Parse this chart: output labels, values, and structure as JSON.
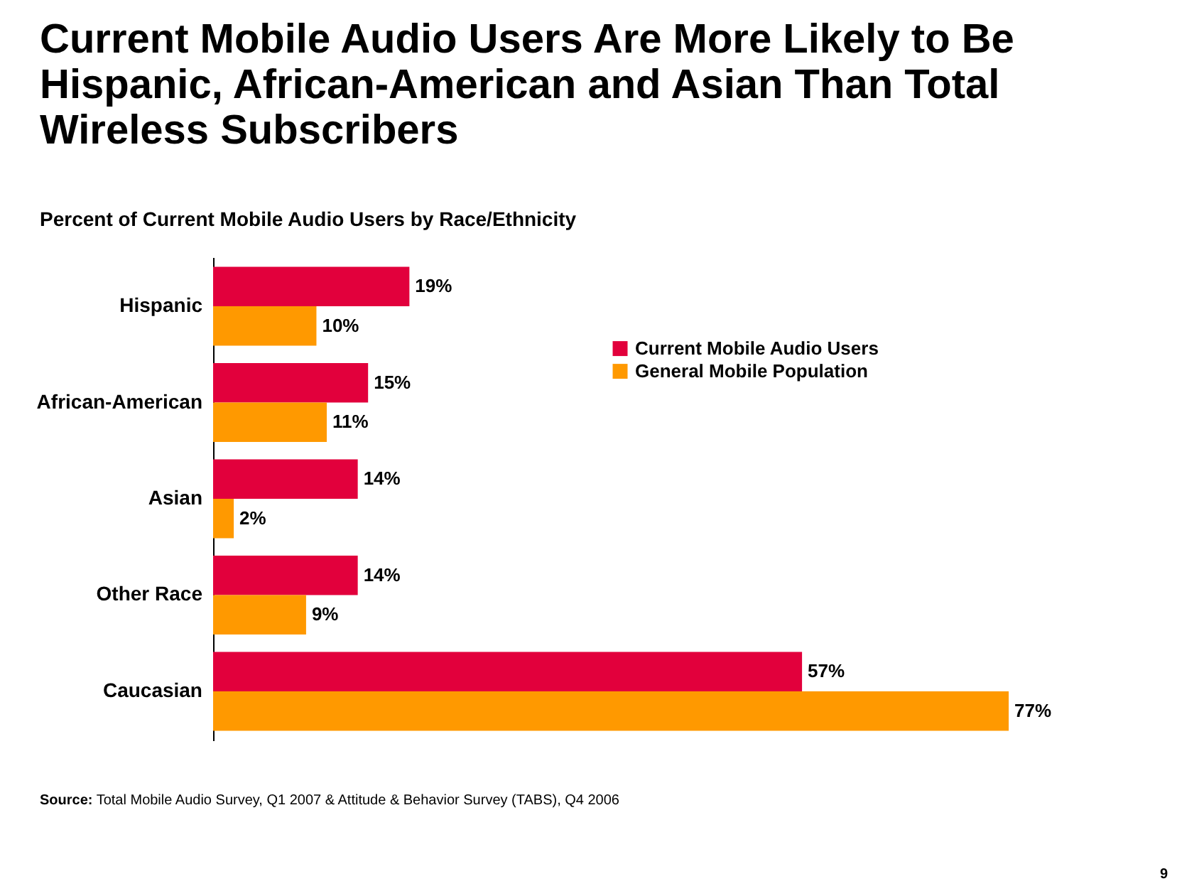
{
  "chart_data": {
    "type": "bar",
    "orientation": "horizontal",
    "title": "Current Mobile Audio Users Are More Likely to Be Hispanic, African-American and Asian Than Total Wireless Subscribers",
    "subtitle": "Percent of Current Mobile Audio Users by Race/Ethnicity",
    "categories": [
      "Hispanic",
      "African-American",
      "Asian",
      "Other Race",
      "Caucasian"
    ],
    "series": [
      {
        "name": "Current Mobile Audio Users",
        "color": "#e2003c",
        "values": [
          19,
          15,
          14,
          14,
          57
        ],
        "value_labels": [
          "19%",
          "15%",
          "14%",
          "14%",
          "57%"
        ]
      },
      {
        "name": "General Mobile Population",
        "color": "#ff9900",
        "values": [
          10,
          11,
          2,
          9,
          77
        ],
        "value_labels": [
          "10%",
          "11%",
          "2%",
          "9%",
          "77%"
        ]
      }
    ],
    "legend": "right",
    "annotations": [
      "Source: Total Mobile Audio Survey,  Q1 2007 & Attitude & Behavior Survey (TABS), Q4 2006",
      "9"
    ]
  }
}
